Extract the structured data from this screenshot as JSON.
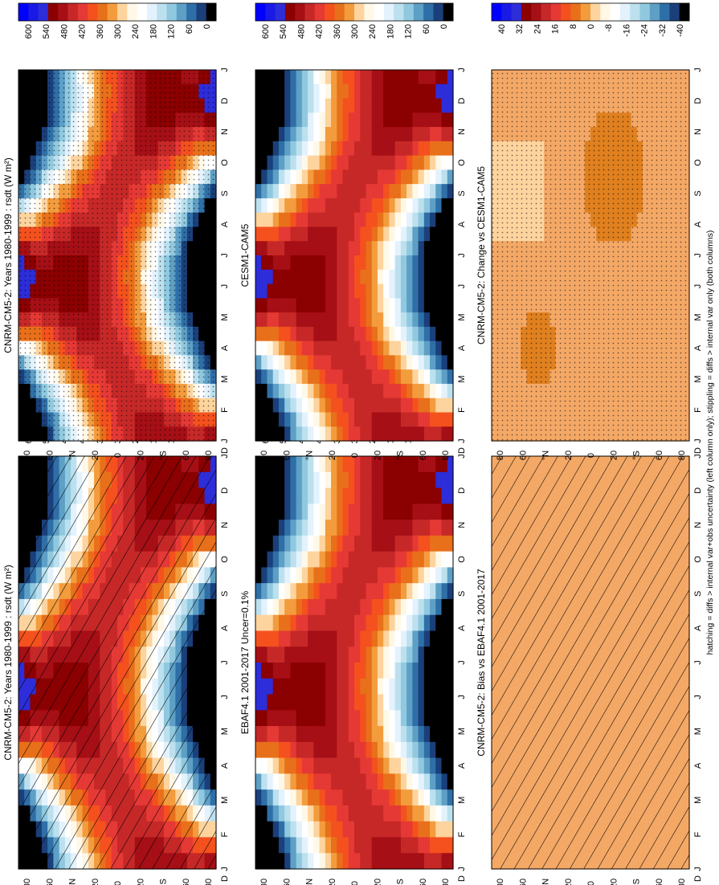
{
  "footnote": "hatching = diffs > internal var+obs uncertainty (left column only); stippling = diffs > internal var only (both columns)",
  "colors": {
    "abs": [
      "#0000FF",
      "#1A1AE6",
      "#2D2DD9",
      "#8B0000",
      "#A50F15",
      "#C62828",
      "#E53935",
      "#F4511E",
      "#E8701A",
      "#F39C3D",
      "#FDD49E",
      "#FFF8E7",
      "#FFFFFF",
      "#E3F2FD",
      "#BCE0EE",
      "#90C9DF",
      "#5E9FC6",
      "#2F6FA7",
      "#1A3F7A",
      "#000000"
    ],
    "diff": [
      "#0000FF",
      "#1A1AE6",
      "#2D2DD9",
      "#8B0000",
      "#A50F15",
      "#C62828",
      "#E53935",
      "#F4511E",
      "#E8701A",
      "#F39C3D",
      "#FDD49E",
      "#FFF8E7",
      "#FFFFFF",
      "#E3F2FD",
      "#BCE0EE",
      "#90C9DF",
      "#5E9FC6",
      "#2F6FA7",
      "#1A3F7A",
      "#000000"
    ],
    "nearzero": "#F4A866",
    "deep": "#E0801F"
  },
  "chart_data": [
    {
      "type": "heatmap",
      "title": "CNRM-CM5-2: Years 1980-1999 : rsdt (W m²)",
      "months": [
        "J",
        "F",
        "M",
        "A",
        "M",
        "J",
        "J",
        "A",
        "S",
        "O",
        "N",
        "D",
        "J"
      ],
      "lat_ticks": [
        "80",
        "60",
        "°N",
        "20",
        "0",
        "20",
        "°S",
        "60",
        "80"
      ],
      "extra_month_label": "D",
      "colorbar_labels": [
        "600",
        "540",
        "480",
        "420",
        "360",
        "300",
        "240",
        "180",
        "120",
        "60",
        "0"
      ],
      "field": "abs",
      "overlay": "hatch",
      "range": [
        0,
        600
      ]
    },
    {
      "type": "heatmap",
      "title": "CNRM-CM5-2: Years 1980-1999 : rsdt (W m²)",
      "months": [
        "J",
        "F",
        "M",
        "A",
        "M",
        "J",
        "J",
        "A",
        "S",
        "O",
        "N",
        "D",
        "J"
      ],
      "lat_ticks": [
        "80",
        "60",
        "°N",
        "20",
        "0",
        "20",
        "°S",
        "60",
        "80"
      ],
      "extra_month_label": "D",
      "colorbar_labels": [
        "600",
        "540",
        "480",
        "420",
        "360",
        "300",
        "240",
        "180",
        "120",
        "60",
        "0"
      ],
      "field": "abs",
      "overlay": "stipple",
      "range": [
        0,
        600
      ]
    },
    {
      "type": "heatmap",
      "title": "EBAF4.1 2001-2017 Uncer=0.1%",
      "months": [
        "J",
        "F",
        "M",
        "A",
        "M",
        "J",
        "J",
        "A",
        "S",
        "O",
        "N",
        "D",
        "J"
      ],
      "lat_ticks": [
        "80",
        "60",
        "°N",
        "20",
        "0",
        "20",
        "°S",
        "60",
        "80"
      ],
      "extra_month_label": "D",
      "colorbar_labels": [
        "600",
        "540",
        "480",
        "420",
        "360",
        "300",
        "240",
        "180",
        "120",
        "60",
        "0"
      ],
      "field": "abs",
      "overlay": "none",
      "range": [
        0,
        600
      ]
    },
    {
      "type": "heatmap",
      "title": "CESM1-CAM5",
      "months": [
        "J",
        "F",
        "M",
        "A",
        "M",
        "J",
        "J",
        "A",
        "S",
        "O",
        "N",
        "D",
        "J"
      ],
      "lat_ticks": [
        "80",
        "60",
        "°N",
        "20",
        "0",
        "20",
        "°S",
        "60",
        "80"
      ],
      "extra_month_label": "D",
      "colorbar_labels": [
        "600",
        "540",
        "480",
        "420",
        "360",
        "300",
        "240",
        "180",
        "120",
        "60",
        "0"
      ],
      "field": "abs",
      "overlay": "none",
      "range": [
        0,
        600
      ]
    },
    {
      "type": "heatmap",
      "title": "CNRM-CM5-2: Bias vs EBAF4.1 2001-2017",
      "months": [
        "J",
        "F",
        "M",
        "A",
        "M",
        "J",
        "J",
        "A",
        "S",
        "O",
        "N",
        "D",
        "J"
      ],
      "lat_ticks": [
        "80",
        "60",
        "°N",
        "20",
        "0",
        "20",
        "°S",
        "60",
        "80"
      ],
      "extra_month_label": "D",
      "colorbar_labels": [
        "40",
        "32",
        "24",
        "16",
        "8",
        "0",
        "-8",
        "-16",
        "-24",
        "-32",
        "-40"
      ],
      "field": "bias",
      "overlay": "hatch",
      "range": [
        -40,
        40
      ]
    },
    {
      "type": "heatmap",
      "title": "CNRM-CM5-2: Change vs CESM1-CAM5",
      "months": [
        "J",
        "F",
        "M",
        "A",
        "M",
        "J",
        "J",
        "A",
        "S",
        "O",
        "N",
        "D",
        "J"
      ],
      "lat_ticks": [
        "80",
        "60",
        "°N",
        "20",
        "0",
        "20",
        "°S",
        "60",
        "80"
      ],
      "extra_month_label": "D",
      "colorbar_labels": [
        "40",
        "32",
        "24",
        "16",
        "8",
        "0",
        "-8",
        "-16",
        "-24",
        "-32",
        "-40"
      ],
      "field": "change",
      "overlay": "stipple",
      "range": [
        -40,
        40
      ]
    }
  ]
}
